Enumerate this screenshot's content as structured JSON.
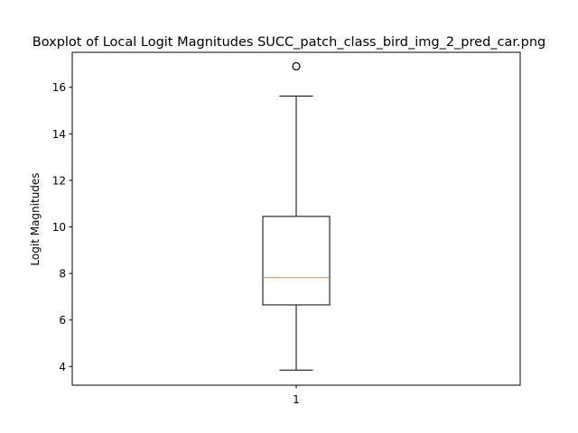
{
  "chart_data": {
    "type": "boxplot",
    "title": "Boxplot of Local Logit Magnitudes SUCC_patch_class_bird_img_2_pred_car.png",
    "xlabel": "",
    "ylabel": "Logit Magnitudes",
    "categories": [
      "1"
    ],
    "yticks": [
      4,
      6,
      8,
      10,
      12,
      14,
      16
    ],
    "ylim": [
      3.2,
      17.5
    ],
    "grid": false,
    "boxes": [
      {
        "category": "1",
        "whisker_low": 3.85,
        "q1": 6.65,
        "median": 7.82,
        "q3": 10.45,
        "whisker_high": 15.62,
        "outliers": [
          16.9
        ]
      }
    ],
    "colors": {
      "box": "#000000",
      "median": "#ff7f0e",
      "outlier": "#000000"
    }
  }
}
